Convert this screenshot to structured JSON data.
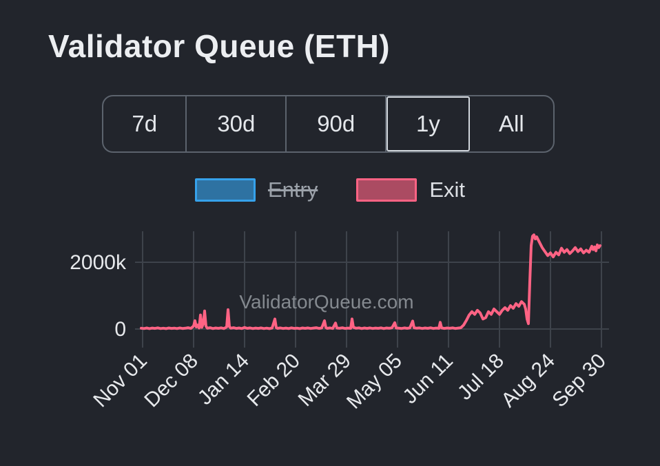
{
  "header": {
    "title": "Validator Queue (ETH)"
  },
  "range_selector": {
    "options": [
      {
        "label": "7d",
        "selected": false
      },
      {
        "label": "30d",
        "selected": false
      },
      {
        "label": "90d",
        "selected": false
      },
      {
        "label": "1y",
        "selected": true
      },
      {
        "label": "All",
        "selected": false
      }
    ]
  },
  "legend": {
    "items": [
      {
        "label": "Entry",
        "color": "#36a2eb",
        "hidden": true
      },
      {
        "label": "Exit",
        "color": "#ff6384",
        "hidden": false
      }
    ]
  },
  "watermark": "ValidatorQueue.com",
  "colors": {
    "background": "#22252c",
    "grid": "#3e434b",
    "axis_text": "#e7e9ec",
    "entry": "#36a2eb",
    "exit": "#ff6384"
  },
  "chart_data": {
    "type": "line",
    "title": "Validator Queue (ETH)",
    "xlabel": "",
    "ylabel": "",
    "grid": true,
    "legend_position": "top",
    "x_unit": "date",
    "y_tick_labels": [
      "0",
      "2000k"
    ],
    "y_ticks": [
      {
        "value": 0,
        "label": "0"
      },
      {
        "value": 2000,
        "label": "2000k"
      }
    ],
    "ylim": [
      0,
      2900
    ],
    "x_tick_labels": [
      "Nov 01",
      "Dec 08",
      "Jan 14",
      "Feb 20",
      "Mar 29",
      "May 05",
      "Jun 11",
      "Jul 18",
      "Aug 24",
      "Sep 30"
    ],
    "x_tick_interval_days": 37,
    "x_range_days": [
      -1,
      333
    ],
    "series": [
      {
        "name": "Entry",
        "color": "#36a2eb",
        "hidden": true,
        "points": []
      },
      {
        "name": "Exit",
        "color": "#ff6384",
        "hidden": false,
        "unit": "k ETH",
        "points": [
          [
            -1,
            25
          ],
          [
            1,
            15
          ],
          [
            3,
            30
          ],
          [
            5,
            12
          ],
          [
            7,
            28
          ],
          [
            9,
            18
          ],
          [
            11,
            35
          ],
          [
            13,
            15
          ],
          [
            15,
            25
          ],
          [
            17,
            12
          ],
          [
            19,
            30
          ],
          [
            21,
            18
          ],
          [
            23,
            26
          ],
          [
            25,
            14
          ],
          [
            27,
            32
          ],
          [
            29,
            16
          ],
          [
            31,
            24
          ],
          [
            33,
            40
          ],
          [
            35,
            18
          ],
          [
            37,
            90
          ],
          [
            38,
            250
          ],
          [
            39,
            60
          ],
          [
            40,
            120
          ],
          [
            41,
            30
          ],
          [
            42,
            420
          ],
          [
            43,
            50
          ],
          [
            44,
            150
          ],
          [
            45,
            540
          ],
          [
            46,
            80
          ],
          [
            47,
            25
          ],
          [
            49,
            40
          ],
          [
            51,
            15
          ],
          [
            53,
            30
          ],
          [
            55,
            20
          ],
          [
            57,
            35
          ],
          [
            59,
            15
          ],
          [
            61,
            60
          ],
          [
            62,
            580
          ],
          [
            63,
            70
          ],
          [
            64,
            25
          ],
          [
            66,
            40
          ],
          [
            68,
            18
          ],
          [
            70,
            30
          ],
          [
            72,
            15
          ],
          [
            74,
            45
          ],
          [
            76,
            20
          ],
          [
            78,
            32
          ],
          [
            80,
            14
          ],
          [
            82,
            28
          ],
          [
            84,
            18
          ],
          [
            86,
            34
          ],
          [
            88,
            15
          ],
          [
            90,
            26
          ],
          [
            92,
            12
          ],
          [
            94,
            30
          ],
          [
            96,
            300
          ],
          [
            97,
            40
          ],
          [
            98,
            20
          ],
          [
            100,
            34
          ],
          [
            102,
            16
          ],
          [
            104,
            28
          ],
          [
            106,
            14
          ],
          [
            108,
            36
          ],
          [
            110,
            18
          ],
          [
            112,
            26
          ],
          [
            114,
            12
          ],
          [
            116,
            30
          ],
          [
            118,
            20
          ],
          [
            120,
            34
          ],
          [
            122,
            16
          ],
          [
            124,
            28
          ],
          [
            126,
            40
          ],
          [
            128,
            18
          ],
          [
            130,
            32
          ],
          [
            132,
            250
          ],
          [
            133,
            45
          ],
          [
            134,
            20
          ],
          [
            136,
            34
          ],
          [
            138,
            16
          ],
          [
            140,
            180
          ],
          [
            141,
            30
          ],
          [
            143,
            22
          ],
          [
            145,
            38
          ],
          [
            147,
            16
          ],
          [
            149,
            28
          ],
          [
            151,
            20
          ],
          [
            152,
            300
          ],
          [
            153,
            50
          ],
          [
            155,
            24
          ],
          [
            157,
            36
          ],
          [
            159,
            14
          ],
          [
            161,
            30
          ],
          [
            163,
            18
          ],
          [
            165,
            34
          ],
          [
            167,
            16
          ],
          [
            169,
            28
          ],
          [
            171,
            20
          ],
          [
            173,
            36
          ],
          [
            175,
            14
          ],
          [
            177,
            30
          ],
          [
            179,
            22
          ],
          [
            181,
            38
          ],
          [
            183,
            190
          ],
          [
            184,
            30
          ],
          [
            186,
            24
          ],
          [
            188,
            16
          ],
          [
            190,
            32
          ],
          [
            192,
            20
          ],
          [
            194,
            36
          ],
          [
            196,
            240
          ],
          [
            197,
            40
          ],
          [
            199,
            24
          ],
          [
            201,
            34
          ],
          [
            203,
            16
          ],
          [
            205,
            30
          ],
          [
            207,
            20
          ],
          [
            209,
            38
          ],
          [
            211,
            16
          ],
          [
            213,
            28
          ],
          [
            215,
            20
          ],
          [
            216,
            200
          ],
          [
            217,
            34
          ],
          [
            219,
            18
          ],
          [
            221,
            30
          ],
          [
            223,
            22
          ],
          [
            225,
            36
          ],
          [
            227,
            16
          ],
          [
            229,
            28
          ],
          [
            231,
            40
          ],
          [
            233,
            120
          ],
          [
            235,
            260
          ],
          [
            237,
            420
          ],
          [
            239,
            520
          ],
          [
            241,
            440
          ],
          [
            243,
            560
          ],
          [
            245,
            480
          ],
          [
            247,
            300
          ],
          [
            249,
            340
          ],
          [
            251,
            520
          ],
          [
            253,
            440
          ],
          [
            255,
            600
          ],
          [
            257,
            520
          ],
          [
            259,
            440
          ],
          [
            261,
            560
          ],
          [
            263,
            640
          ],
          [
            265,
            560
          ],
          [
            267,
            700
          ],
          [
            269,
            620
          ],
          [
            271,
            760
          ],
          [
            273,
            680
          ],
          [
            275,
            820
          ],
          [
            277,
            740
          ],
          [
            278,
            600
          ],
          [
            279,
            300
          ],
          [
            280,
            160
          ],
          [
            281,
            1400
          ],
          [
            282,
            2500
          ],
          [
            283,
            2780
          ],
          [
            284,
            2820
          ],
          [
            285,
            2700
          ],
          [
            286,
            2760
          ],
          [
            288,
            2600
          ],
          [
            290,
            2440
          ],
          [
            292,
            2320
          ],
          [
            294,
            2200
          ],
          [
            296,
            2280
          ],
          [
            298,
            2160
          ],
          [
            300,
            2300
          ],
          [
            302,
            2220
          ],
          [
            304,
            2420
          ],
          [
            306,
            2300
          ],
          [
            308,
            2380
          ],
          [
            310,
            2260
          ],
          [
            312,
            2340
          ],
          [
            314,
            2440
          ],
          [
            316,
            2320
          ],
          [
            318,
            2400
          ],
          [
            320,
            2280
          ],
          [
            322,
            2360
          ],
          [
            324,
            2300
          ],
          [
            326,
            2480
          ],
          [
            327,
            2380
          ],
          [
            328,
            2460
          ],
          [
            329,
            2340
          ],
          [
            330,
            2520
          ],
          [
            331,
            2440
          ],
          [
            332,
            2500
          ]
        ]
      }
    ]
  }
}
